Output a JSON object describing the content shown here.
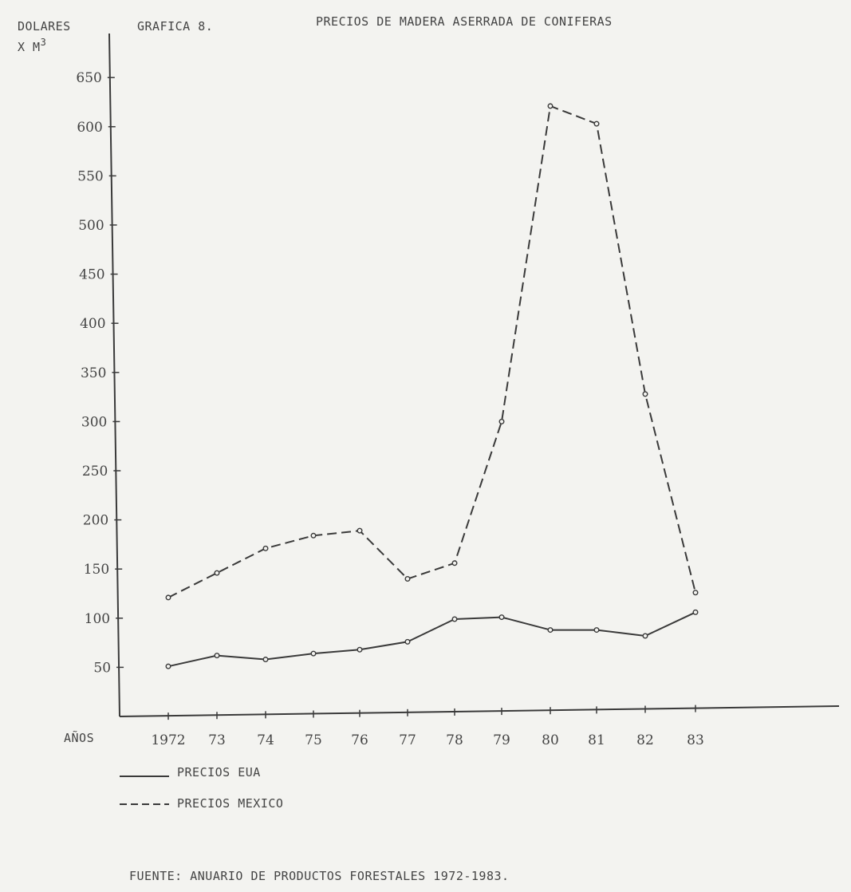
{
  "chart_data": {
    "type": "line",
    "title": "PRECIOS DE MADERA ASERRADA DE CONIFERAS",
    "figure_label": "GRAFICA 8.",
    "ylabel_line1": "DOLARES",
    "ylabel_line2": "X M",
    "ylabel_superscript": "3",
    "xlabel": "AÑOS",
    "x": [
      1972,
      1973,
      1974,
      1975,
      1976,
      1977,
      1978,
      1979,
      1980,
      1981,
      1982,
      1983
    ],
    "x_tick_labels": [
      "1972",
      "73",
      "74",
      "75",
      "76",
      "77",
      "78",
      "79",
      "80",
      "81",
      "82",
      "83"
    ],
    "y_ticks": [
      50,
      100,
      150,
      200,
      250,
      300,
      350,
      400,
      450,
      500,
      550,
      600,
      650
    ],
    "ylim": [
      0,
      690
    ],
    "series": [
      {
        "name": "PRECIOS EUA",
        "style": "solid",
        "values": [
          51,
          62,
          58,
          64,
          68,
          76,
          99,
          101,
          88,
          88,
          82,
          106
        ]
      },
      {
        "name": "PRECIOS MEXICO",
        "style": "dashed",
        "values": [
          121,
          146,
          171,
          184,
          189,
          140,
          156,
          300,
          621,
          603,
          328,
          126
        ]
      }
    ],
    "legend": [
      {
        "label": "PRECIOS EUA",
        "style": "solid"
      },
      {
        "label": "PRECIOS MEXICO",
        "style": "dashed"
      }
    ],
    "source": "FUENTE:  ANUARIO DE PRODUCTOS FORESTALES 1972-1983.",
    "line_color": "#3a3a3a",
    "grid": false
  }
}
